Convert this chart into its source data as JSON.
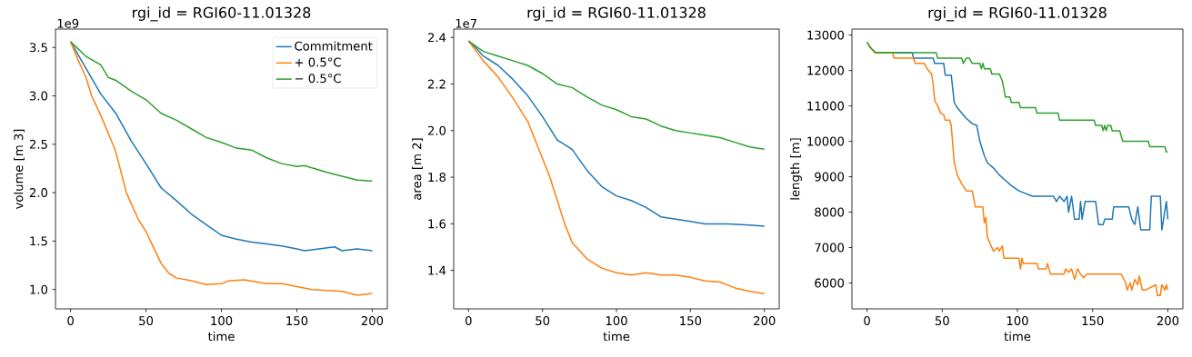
{
  "chart_data": [
    {
      "type": "line",
      "title": "rgi_id = RGI60-11.01328",
      "xlabel": "time",
      "ylabel": "volume [m 3]",
      "annotations": [
        "1e9"
      ],
      "legend": "top right",
      "xlim": [
        -10,
        210
      ],
      "xticks": [
        0,
        50,
        100,
        150,
        200
      ],
      "ylim": [
        0.8,
        3.69
      ],
      "yticks": [
        {
          "value": 1.0,
          "label": "1.0"
        },
        {
          "value": 1.5,
          "label": "1.5"
        },
        {
          "value": 2.0,
          "label": "2.0"
        },
        {
          "value": 2.5,
          "label": "2.5"
        },
        {
          "value": 3.0,
          "label": "3.0"
        },
        {
          "value": 3.5,
          "label": "3.5"
        }
      ],
      "series": [
        {
          "name": "Commitment",
          "color": "#1f77b4",
          "x": [
            0,
            10,
            20,
            30,
            40,
            50,
            60,
            70,
            80,
            90,
            100,
            110,
            120,
            130,
            140,
            150,
            155,
            160,
            175,
            180,
            190,
            200
          ],
          "values": [
            3.56,
            3.29,
            3.02,
            2.82,
            2.54,
            2.3,
            2.05,
            1.92,
            1.78,
            1.67,
            1.56,
            1.52,
            1.49,
            1.47,
            1.45,
            1.42,
            1.4,
            1.41,
            1.44,
            1.4,
            1.42,
            1.4
          ]
        },
        {
          "name": "+ 0.5°C",
          "color": "#ff7f0e",
          "x": [
            0,
            5,
            10,
            14,
            20,
            28,
            30,
            37,
            45,
            50,
            53,
            60,
            65,
            70,
            80,
            90,
            100,
            105,
            115,
            130,
            140,
            150,
            160,
            180,
            190,
            200
          ],
          "values": [
            3.56,
            3.37,
            3.2,
            3.0,
            2.8,
            2.5,
            2.42,
            2.0,
            1.72,
            1.6,
            1.5,
            1.27,
            1.17,
            1.12,
            1.09,
            1.05,
            1.06,
            1.09,
            1.1,
            1.06,
            1.06,
            1.03,
            1.0,
            0.98,
            0.94,
            0.96
          ]
        },
        {
          "name": "− 0.5°C",
          "color": "#2ca02c",
          "x": [
            0,
            10,
            20,
            25,
            30,
            40,
            50,
            60,
            70,
            80,
            90,
            100,
            110,
            120,
            130,
            140,
            150,
            155,
            170,
            180,
            190,
            200
          ],
          "values": [
            3.56,
            3.41,
            3.32,
            3.19,
            3.16,
            3.05,
            2.96,
            2.82,
            2.75,
            2.66,
            2.57,
            2.52,
            2.46,
            2.44,
            2.36,
            2.3,
            2.27,
            2.28,
            2.21,
            2.17,
            2.13,
            2.12
          ]
        }
      ]
    },
    {
      "type": "line",
      "title": "rgi_id = RGI60-11.01328",
      "xlabel": "time",
      "ylabel": "area [m 2]",
      "annotations": [
        "1e7"
      ],
      "xlim": [
        -10,
        210
      ],
      "xticks": [
        0,
        50,
        100,
        150,
        200
      ],
      "ylim": [
        1.235,
        2.436
      ],
      "yticks": [
        {
          "value": 1.4,
          "label": "1.4"
        },
        {
          "value": 1.6,
          "label": "1.6"
        },
        {
          "value": 1.8,
          "label": "1.8"
        },
        {
          "value": 2.0,
          "label": "2.0"
        },
        {
          "value": 2.2,
          "label": "2.2"
        },
        {
          "value": 2.4,
          "label": "2.4"
        }
      ],
      "series": [
        {
          "color": "#1f77b4",
          "x": [
            0,
            5,
            10,
            20,
            30,
            40,
            50,
            60,
            70,
            80,
            90,
            100,
            110,
            120,
            130,
            140,
            150,
            160,
            175,
            190,
            200
          ],
          "values": [
            2.385,
            2.355,
            2.32,
            2.28,
            2.22,
            2.15,
            2.06,
            1.96,
            1.92,
            1.83,
            1.76,
            1.72,
            1.7,
            1.67,
            1.63,
            1.62,
            1.61,
            1.6,
            1.6,
            1.595,
            1.59
          ]
        },
        {
          "color": "#ff7f0e",
          "x": [
            0,
            10,
            20,
            30,
            40,
            50,
            55,
            60,
            65,
            70,
            80,
            90,
            100,
            110,
            120,
            130,
            140,
            150,
            160,
            170,
            180,
            190,
            200
          ],
          "values": [
            2.385,
            2.3,
            2.23,
            2.14,
            2.04,
            1.88,
            1.8,
            1.7,
            1.6,
            1.52,
            1.45,
            1.41,
            1.39,
            1.38,
            1.39,
            1.38,
            1.38,
            1.37,
            1.355,
            1.35,
            1.325,
            1.31,
            1.3
          ]
        },
        {
          "color": "#2ca02c",
          "x": [
            0,
            10,
            20,
            30,
            40,
            50,
            60,
            70,
            80,
            90,
            100,
            110,
            120,
            130,
            140,
            150,
            160,
            170,
            180,
            190,
            200
          ],
          "values": [
            2.385,
            2.34,
            2.32,
            2.3,
            2.28,
            2.245,
            2.2,
            2.185,
            2.145,
            2.11,
            2.09,
            2.06,
            2.05,
            2.02,
            2.0,
            1.99,
            1.98,
            1.97,
            1.95,
            1.93,
            1.92
          ]
        }
      ]
    },
    {
      "type": "line",
      "title": "rgi_id = RGI60-11.01328",
      "xlabel": "time",
      "ylabel": "length [m]",
      "xlim": [
        -10,
        210
      ],
      "xticks": [
        0,
        50,
        100,
        150,
        200
      ],
      "ylim": [
        5270,
        13170
      ],
      "yticks": [
        6000,
        7000,
        8000,
        9000,
        10000,
        11000,
        12000,
        13000
      ],
      "series": [
        {
          "color": "#1f77b4",
          "x": [
            6,
            30,
            31,
            44,
            45,
            51,
            52,
            56,
            58,
            60,
            63,
            66,
            70,
            73,
            75,
            78,
            80,
            84,
            88,
            92,
            96,
            101,
            110,
            124,
            126,
            128,
            131,
            133,
            134,
            136,
            138,
            141,
            142,
            143,
            145,
            152,
            154,
            157,
            158,
            163,
            164,
            174,
            176,
            178,
            180,
            182,
            188,
            189,
            195,
            196,
            199,
            200
          ],
          "values": [
            12500,
            12500,
            12350,
            12350,
            12200,
            12200,
            11870,
            11870,
            11100,
            10950,
            10800,
            10650,
            10500,
            10450,
            10000,
            9600,
            9400,
            9250,
            9050,
            8900,
            8750,
            8600,
            8450,
            8450,
            8300,
            8450,
            8300,
            8450,
            8000,
            8450,
            7800,
            7800,
            8300,
            7800,
            8300,
            8300,
            7650,
            7650,
            7800,
            7800,
            8150,
            8150,
            7800,
            7650,
            8150,
            7500,
            7500,
            8450,
            8450,
            7500,
            8300,
            7800
          ]
        },
        {
          "color": "#ff7f0e",
          "x": [
            0,
            5,
            17,
            18,
            31,
            32,
            38,
            40,
            43,
            44,
            45,
            47,
            49,
            51,
            52,
            55,
            56,
            58,
            60,
            63,
            66,
            70,
            72,
            77,
            78,
            79,
            80,
            84,
            87,
            88,
            90,
            91,
            101,
            102,
            103,
            104,
            113,
            114,
            119,
            120,
            122,
            131,
            132,
            134,
            136,
            138,
            140,
            142,
            144,
            146,
            169,
            172,
            173,
            175,
            176,
            178,
            180,
            181,
            183,
            185,
            192,
            193,
            195,
            196,
            198,
            199,
            200
          ],
          "values": [
            12800,
            12500,
            12500,
            12350,
            12350,
            12200,
            12200,
            12050,
            11900,
            11600,
            11150,
            11000,
            10800,
            10750,
            10600,
            10600,
            10450,
            9400,
            9050,
            8800,
            8600,
            8600,
            8150,
            8150,
            7700,
            7850,
            7300,
            6900,
            7000,
            6900,
            7050,
            6700,
            6700,
            6400,
            6700,
            6550,
            6550,
            6400,
            6400,
            6550,
            6250,
            6250,
            6400,
            6300,
            6400,
            6100,
            6400,
            6250,
            6150,
            6250,
            6250,
            6000,
            5800,
            6000,
            5800,
            6100,
            5950,
            6200,
            5800,
            5800,
            5950,
            5650,
            5650,
            5950,
            5800,
            5950,
            5800
          ]
        },
        {
          "color": "#2ca02c",
          "x": [
            0,
            2,
            6,
            46,
            47,
            63,
            64,
            66,
            68,
            70,
            75,
            76,
            77,
            78,
            82,
            83,
            88,
            90,
            92,
            95,
            96,
            101,
            102,
            112,
            113,
            127,
            128,
            151,
            152,
            156,
            157,
            158,
            159,
            160,
            162,
            163,
            168,
            170,
            187,
            188,
            198,
            199,
            200
          ],
          "values": [
            12800,
            12650,
            12500,
            12500,
            12350,
            12350,
            12200,
            12350,
            12350,
            12200,
            12200,
            12050,
            12200,
            12050,
            12050,
            11900,
            11900,
            11700,
            11250,
            11250,
            11100,
            11100,
            10950,
            10950,
            10800,
            10800,
            10600,
            10600,
            10450,
            10450,
            10300,
            10450,
            10300,
            10450,
            10450,
            10300,
            10300,
            10000,
            10000,
            9850,
            9850,
            9700,
            9700
          ]
        }
      ]
    }
  ]
}
